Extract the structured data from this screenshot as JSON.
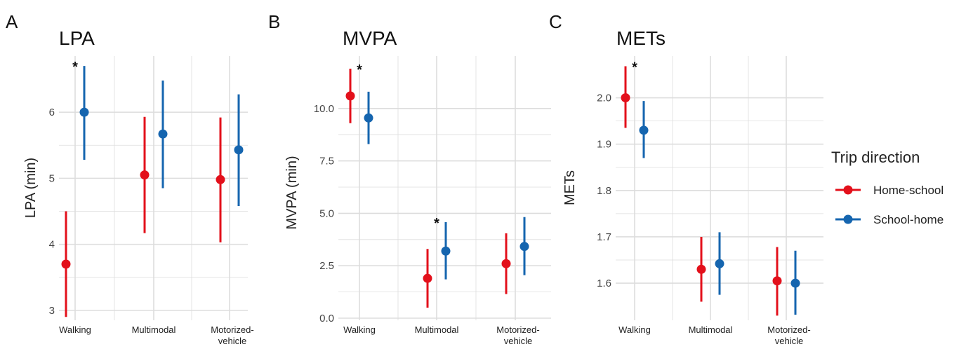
{
  "chart_data": [
    {
      "type": "scatter",
      "panel": "A",
      "title": "LPA",
      "ylabel": "LPA (min)",
      "xlabel": "",
      "categories": [
        "Walking",
        "Multimodal",
        "Motorized-vehicle"
      ],
      "ylim": [
        2.85,
        6.85
      ],
      "yticks": [
        "3",
        "4",
        "5",
        "6"
      ],
      "grid": true,
      "series": [
        {
          "name": "Home-school",
          "color": "#E3101B",
          "values": [
            3.7,
            5.05,
            4.98
          ],
          "lower": [
            2.9,
            4.17,
            4.03
          ],
          "upper": [
            4.5,
            5.93,
            5.92
          ]
        },
        {
          "name": "School-home",
          "color": "#1565AF",
          "values": [
            6.0,
            5.67,
            5.43
          ],
          "lower": [
            5.28,
            4.85,
            4.58
          ],
          "upper": [
            6.7,
            6.48,
            6.27
          ]
        }
      ],
      "annotations": [
        {
          "text": "*",
          "category": "Walking"
        }
      ]
    },
    {
      "type": "scatter",
      "panel": "B",
      "title": "MVPA",
      "ylabel": "MVPA (min)",
      "xlabel": "",
      "categories": [
        "Walking",
        "Multimodal",
        "Motorized-vehicle"
      ],
      "ylim": [
        -0.1,
        12.5
      ],
      "yticks": [
        "0.0",
        "2.5",
        "5.0",
        "7.5",
        "10.0"
      ],
      "grid": true,
      "series": [
        {
          "name": "Home-school",
          "color": "#E3101B",
          "values": [
            10.6,
            1.9,
            2.6
          ],
          "lower": [
            9.3,
            0.5,
            1.15
          ],
          "upper": [
            11.9,
            3.3,
            4.05
          ]
        },
        {
          "name": "School-home",
          "color": "#1565AF",
          "values": [
            9.55,
            3.2,
            3.42
          ],
          "lower": [
            8.3,
            1.85,
            2.05
          ],
          "upper": [
            10.8,
            4.58,
            4.82
          ]
        }
      ],
      "annotations": [
        {
          "text": "*",
          "category": "Walking"
        },
        {
          "text": "*",
          "category": "Multimodal"
        }
      ]
    },
    {
      "type": "scatter",
      "panel": "C",
      "title": "METs",
      "ylabel": "METs",
      "xlabel": "",
      "categories": [
        "Walking",
        "Multimodal",
        "Motorized-vehicle"
      ],
      "ylim": [
        1.52,
        2.09
      ],
      "yticks": [
        "1.6",
        "1.7",
        "1.8",
        "1.9",
        "2.0"
      ],
      "grid": true,
      "series": [
        {
          "name": "Home-school",
          "color": "#E3101B",
          "values": [
            2.0,
            1.63,
            1.605
          ],
          "lower": [
            1.935,
            1.56,
            1.53
          ],
          "upper": [
            2.068,
            1.7,
            1.678
          ]
        },
        {
          "name": "School-home",
          "color": "#1565AF",
          "values": [
            1.93,
            1.642,
            1.6
          ],
          "lower": [
            1.87,
            1.575,
            1.532
          ],
          "upper": [
            1.993,
            1.71,
            1.67
          ]
        }
      ],
      "annotations": [
        {
          "text": "*",
          "category": "Walking"
        }
      ]
    }
  ],
  "legend": {
    "title": "Trip direction",
    "position": "right",
    "items": [
      {
        "label": "Home-school",
        "color": "#E3101B"
      },
      {
        "label": "School-home",
        "color": "#1565AF"
      }
    ]
  },
  "colors": {
    "grid": "#DDDDDD",
    "text": "#222222"
  }
}
